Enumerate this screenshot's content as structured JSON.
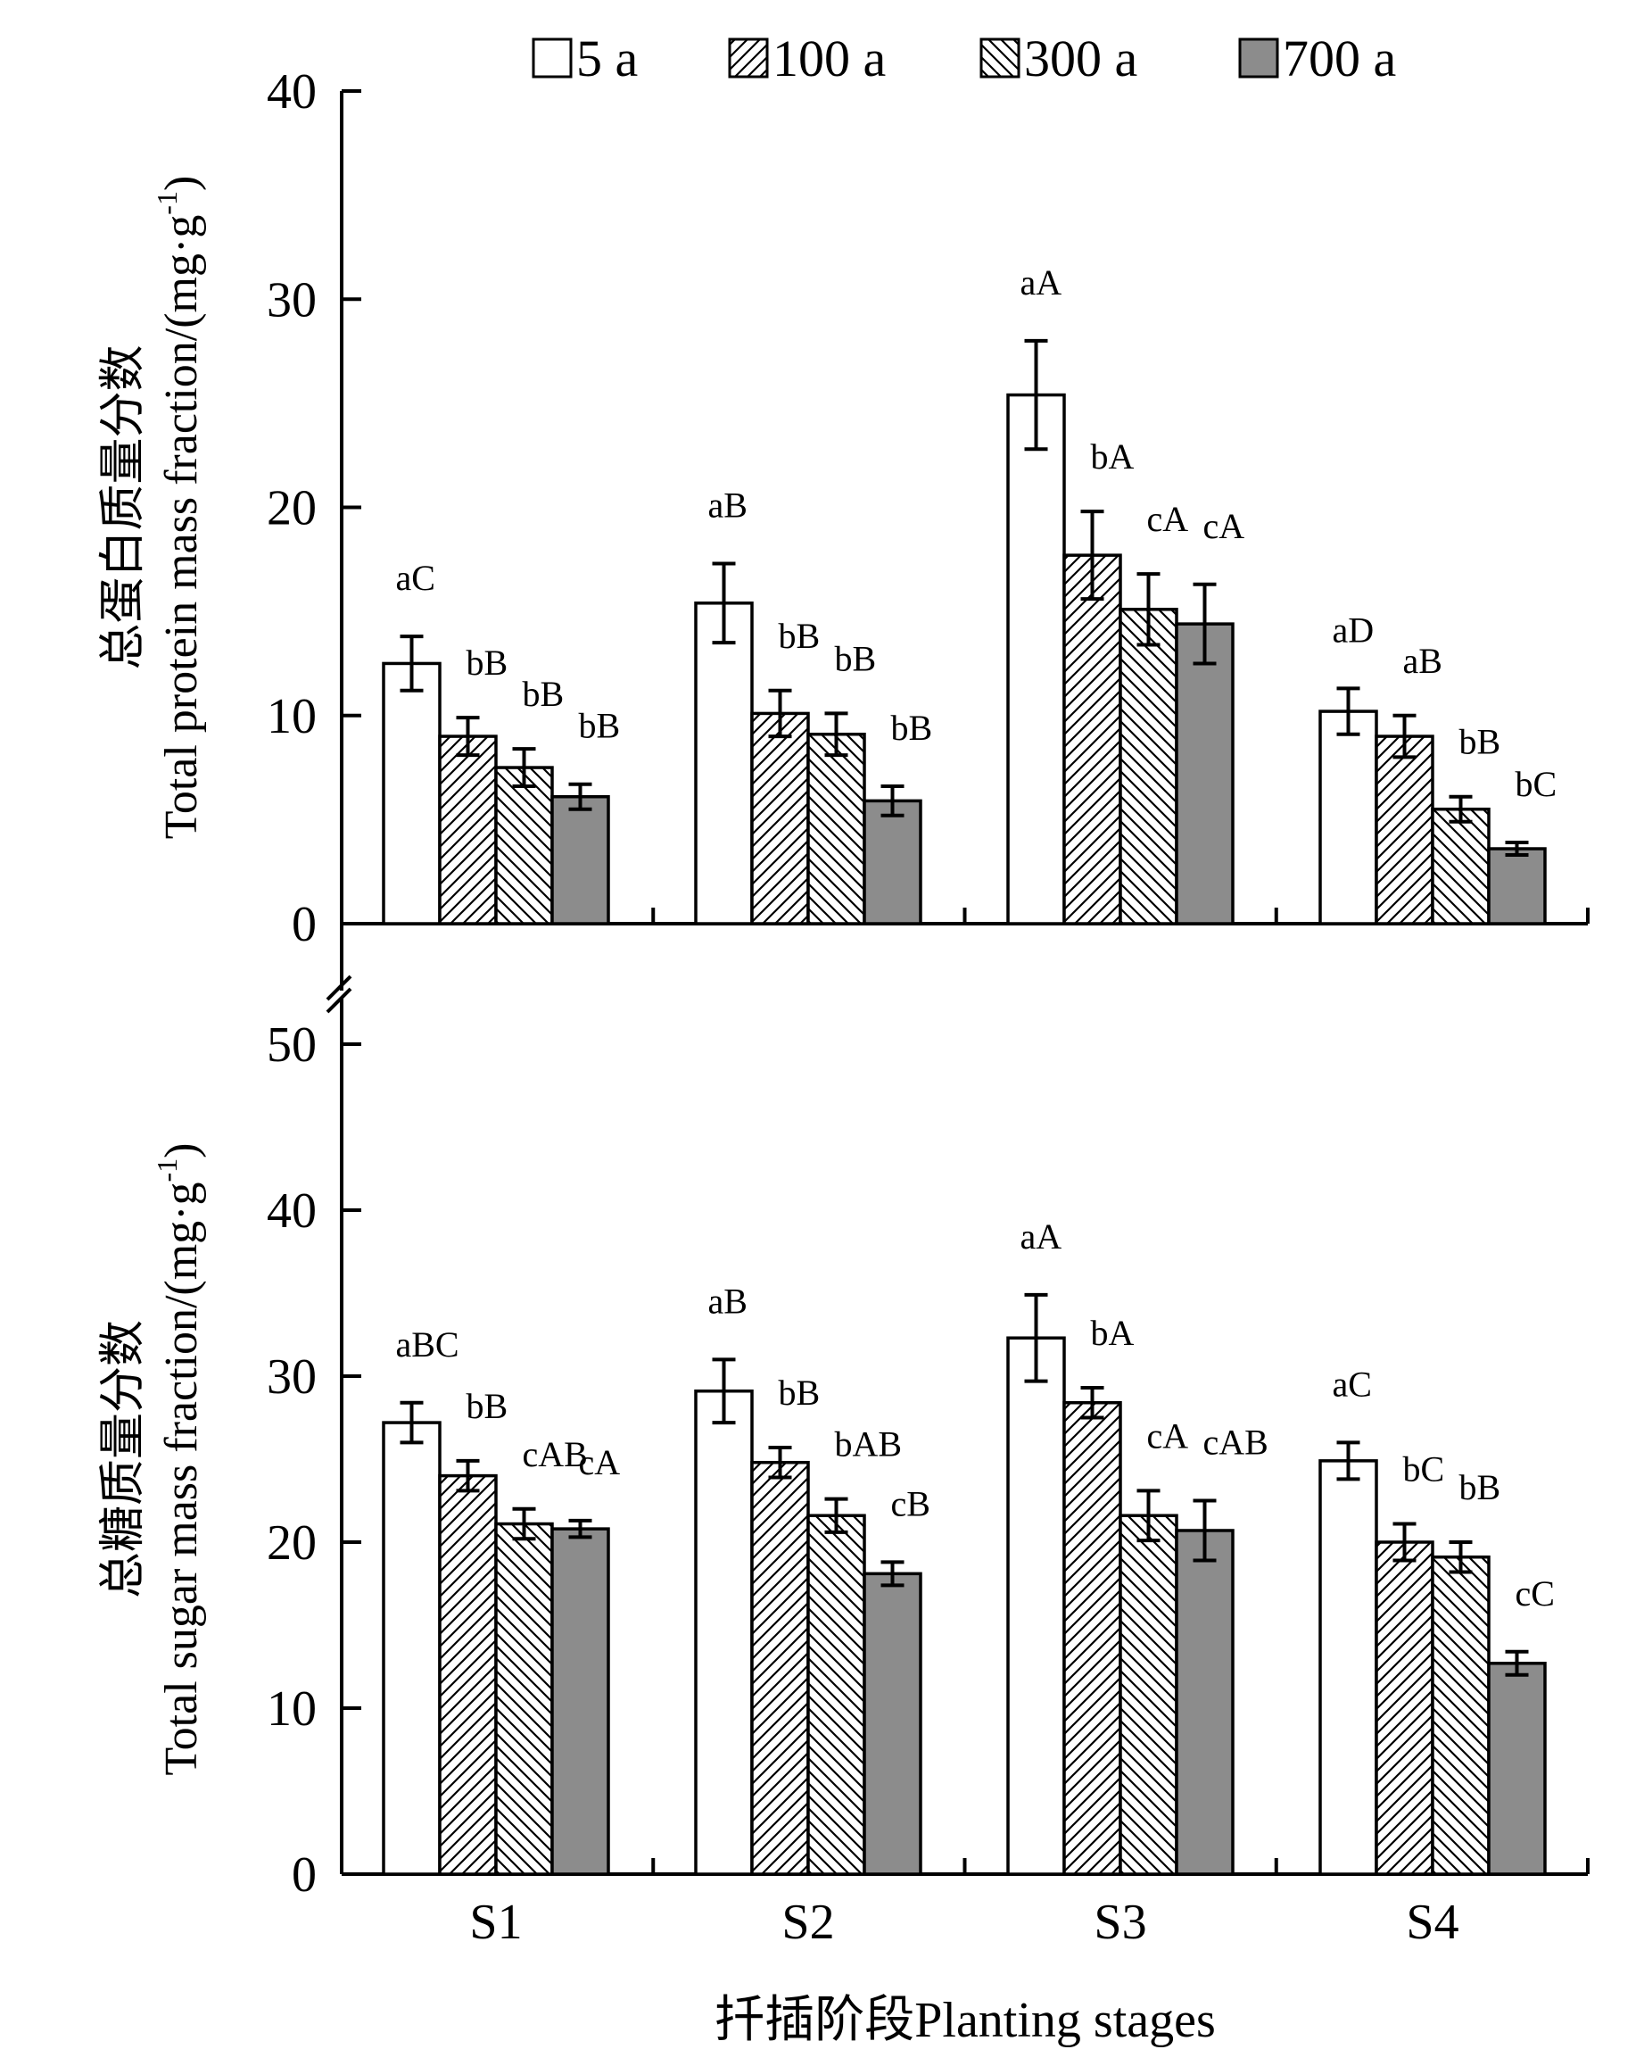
{
  "legend": [
    {
      "label": "5 a",
      "style": "open",
      "color": "#ffffff"
    },
    {
      "label": "100 a",
      "style": "hatch-forward",
      "color": "#ffffff"
    },
    {
      "label": "300 a",
      "style": "hatch-back",
      "color": "#ffffff"
    },
    {
      "label": "700 a",
      "style": "solid",
      "color": "#8c8c8c"
    }
  ],
  "xlabel": "扦插阶段Planting stages",
  "chart_data": [
    {
      "type": "bar",
      "ylabel_cn": "总蛋白质量分数",
      "ylabel_en": "Total protein mass fraction/(mg·g",
      "ylabel_sup": "-1",
      "ylabel_end": ")",
      "ylim": [
        0,
        40
      ],
      "yticks": [
        "0",
        "10",
        "20",
        "30",
        "40"
      ],
      "categories": [
        "S1",
        "S2",
        "S3",
        "S4"
      ],
      "series": [
        {
          "name": "5 a",
          "values": [
            12.5,
            15.4,
            25.4,
            10.2
          ],
          "errors": [
            1.3,
            1.9,
            2.6,
            1.1
          ],
          "labels": [
            "aC",
            "aB",
            "aA",
            "aD"
          ]
        },
        {
          "name": "100 a",
          "values": [
            9.0,
            10.1,
            17.7,
            9.0
          ],
          "errors": [
            0.9,
            1.1,
            2.1,
            1.0
          ],
          "labels": [
            "bB",
            "bB",
            "bA",
            "aB"
          ]
        },
        {
          "name": "300 a",
          "values": [
            7.5,
            9.1,
            15.1,
            5.5
          ],
          "errors": [
            0.9,
            1.0,
            1.7,
            0.6
          ],
          "labels": [
            "bB",
            "bB",
            "cA",
            "bB"
          ]
        },
        {
          "name": "700 a",
          "values": [
            6.1,
            5.9,
            14.4,
            3.6
          ],
          "errors": [
            0.6,
            0.7,
            1.9,
            0.3
          ],
          "labels": [
            "bB",
            "bB",
            "cA",
            "bC"
          ]
        }
      ]
    },
    {
      "type": "bar",
      "ylabel_cn": "总糖质量分数",
      "ylabel_en": "Total sugar mass fraction/(mg·g",
      "ylabel_sup": "-1",
      "ylabel_end": ")",
      "ylim": [
        0,
        50
      ],
      "yticks": [
        "0",
        "10",
        "20",
        "30",
        "40",
        "50"
      ],
      "categories": [
        "S1",
        "S2",
        "S3",
        "S4"
      ],
      "series": [
        {
          "name": "5 a",
          "values": [
            27.2,
            29.1,
            32.3,
            24.9
          ],
          "errors": [
            1.2,
            1.9,
            2.6,
            1.1
          ],
          "labels": [
            "aBC",
            "aB",
            "aA",
            "aC"
          ]
        },
        {
          "name": "100 a",
          "values": [
            24.0,
            24.8,
            28.4,
            20.0
          ],
          "errors": [
            0.9,
            0.9,
            0.9,
            1.1
          ],
          "labels": [
            "bB",
            "bB",
            "bA",
            "bC"
          ]
        },
        {
          "name": "300 a",
          "values": [
            21.1,
            21.6,
            21.6,
            19.1
          ],
          "errors": [
            0.9,
            1.0,
            1.5,
            0.9
          ],
          "labels": [
            "cAB",
            "bAB",
            "cA",
            "bB"
          ]
        },
        {
          "name": "700 a",
          "values": [
            20.8,
            18.1,
            20.7,
            12.7
          ],
          "errors": [
            0.5,
            0.7,
            1.8,
            0.7
          ],
          "labels": [
            "cA",
            "cB",
            "cAB",
            "cC"
          ]
        }
      ]
    }
  ]
}
